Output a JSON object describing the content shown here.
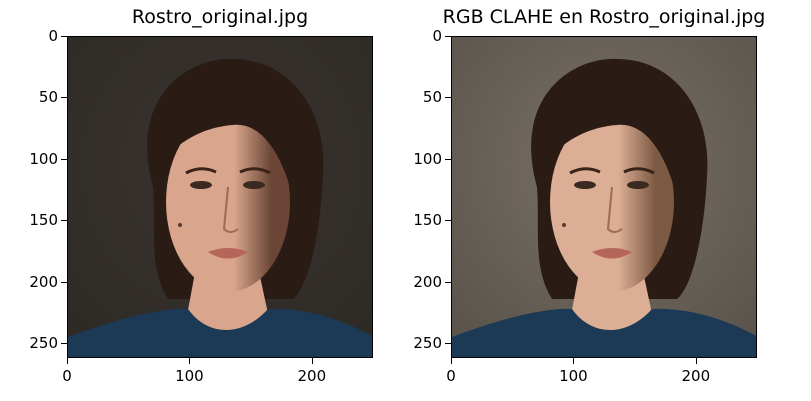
{
  "figure": {
    "panels": [
      {
        "title": "Rostro_original.jpg",
        "variant": "original",
        "yticks": [
          "0",
          "50",
          "100",
          "150",
          "200",
          "250"
        ],
        "xticks": [
          "0",
          "100",
          "200"
        ]
      },
      {
        "title": "RGB CLAHE en Rostro_original.jpg",
        "variant": "clahe",
        "yticks": [
          "0",
          "50",
          "100",
          "150",
          "200",
          "250"
        ],
        "xticks": [
          "0",
          "100",
          "200"
        ]
      }
    ],
    "image_extent": {
      "x": [
        0,
        250
      ],
      "y": [
        0,
        262
      ]
    },
    "colors": {
      "original_background": "#2e2a26",
      "clahe_background": "#5a544c",
      "hair": "#2a1c14",
      "skin_original": "#d9a58c",
      "skin_clahe": "#dcae95",
      "shirt": "#1c3a55"
    }
  }
}
